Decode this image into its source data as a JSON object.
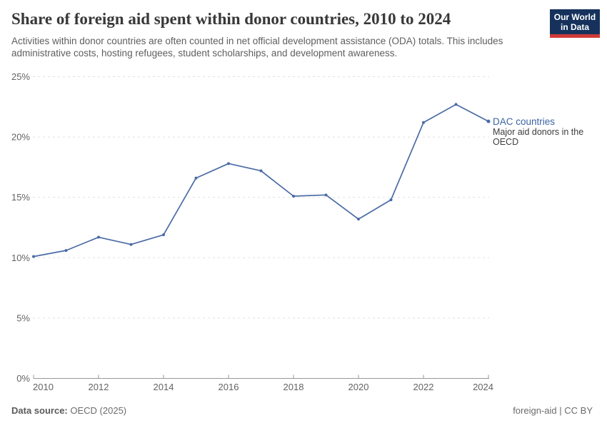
{
  "header": {
    "title": "Share of foreign aid spent within donor countries, 2010 to 2024",
    "subtitle": "Activities within donor countries are often counted in net official development assistance (ODA) totals. This includes administrative costs, hosting refugees, student scholarships, and development awareness.",
    "logo": {
      "line1": "Our World",
      "line2": "in Data",
      "bg_color": "#16325c",
      "accent_color": "#cf3a38"
    }
  },
  "chart_data": {
    "type": "line",
    "title": "Share of foreign aid spent within donor countries, 2010 to 2024",
    "subtitle": "Activities within donor countries are often counted in net official development assistance (ODA) totals. This includes administrative costs, hosting refugees, student scholarships, and development awareness.",
    "x": [
      2010,
      2011,
      2012,
      2013,
      2014,
      2015,
      2016,
      2017,
      2018,
      2019,
      2020,
      2021,
      2022,
      2023,
      2024
    ],
    "series": [
      {
        "name": "DAC countries",
        "description": "Major aid donors in the OECD",
        "description_lines": [
          "Major aid donors in the",
          "OECD"
        ],
        "color": "#4a6ba5",
        "label_color": "#3c64a0",
        "values": [
          10.1,
          10.6,
          11.7,
          11.1,
          11.9,
          16.6,
          17.8,
          17.2,
          15.1,
          15.2,
          13.2,
          14.8,
          21.2,
          22.7,
          21.3
        ]
      }
    ],
    "xlabel": "",
    "ylabel": "",
    "ylim": [
      0,
      25
    ],
    "yticks": [
      0,
      5,
      10,
      15,
      20,
      25
    ],
    "y_tick_suffix": "%",
    "xticks": [
      2010,
      2012,
      2014,
      2016,
      2018,
      2020,
      2022,
      2024
    ],
    "grid": "horizontal-dashed",
    "legend_position": "end-of-line",
    "colors": {
      "grid": "#e1e1e1",
      "axis": "#979797",
      "tick_label": "#636363",
      "annotation_text": "#3c3c3c"
    }
  },
  "footer": {
    "source_label": "Data source:",
    "source_value": "OECD (2025)",
    "link1": "foreign-aid",
    "separator": "|",
    "link2": "CC BY"
  }
}
